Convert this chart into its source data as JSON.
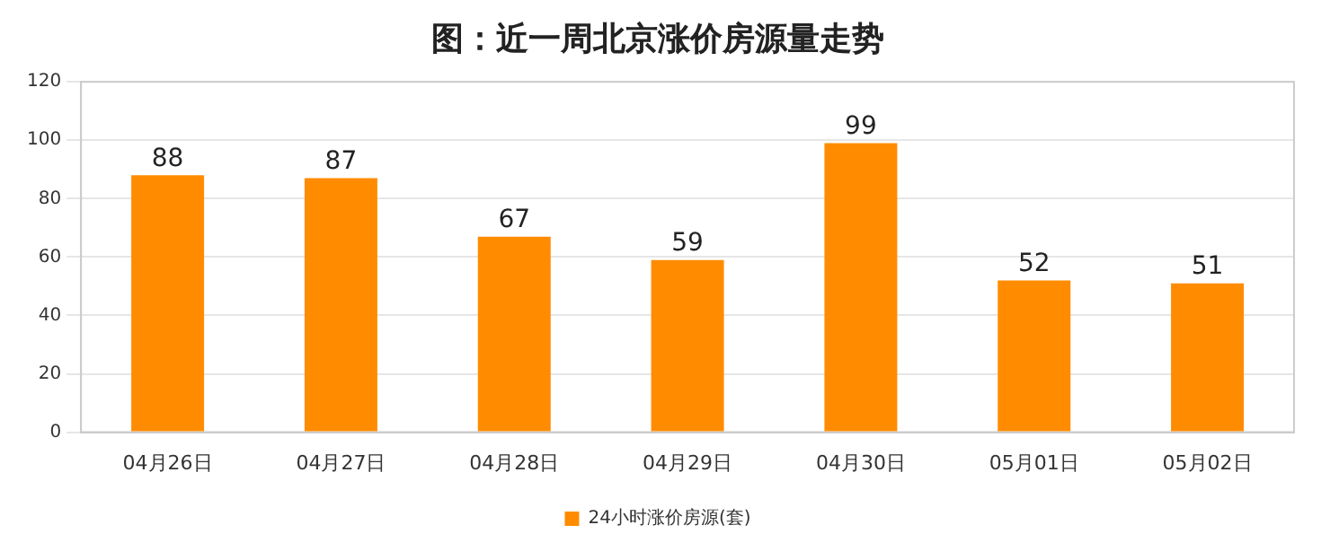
{
  "chart_data": {
    "type": "bar",
    "title": "图：近一周北京涨价房源量走势",
    "categories": [
      "04月26日",
      "04月27日",
      "04月28日",
      "04月29日",
      "04月30日",
      "05月01日",
      "05月02日"
    ],
    "series": [
      {
        "name": "24小时涨价房源(套)",
        "color": "#ff8c00",
        "values": [
          88,
          87,
          67,
          59,
          99,
          52,
          51
        ]
      }
    ],
    "ylim": [
      0,
      120
    ],
    "yticks": [
      0,
      20,
      40,
      60,
      80,
      100,
      120
    ],
    "grid": "y",
    "legend": "bottom",
    "data_labels": true
  }
}
